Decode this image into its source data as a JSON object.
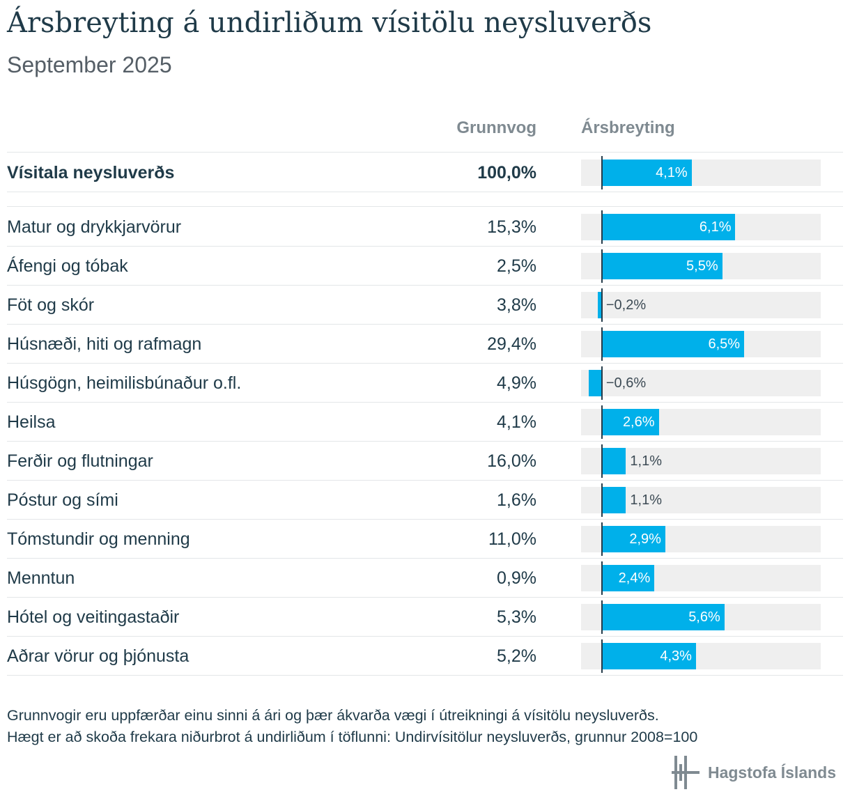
{
  "title": "Ársbreyting á undirliðum vísitölu neysluverðs",
  "subtitle": "September 2025",
  "columns": {
    "weight": "Grunnvog",
    "change": "Ársbreyting"
  },
  "total_row": {
    "label": "Vísitala neysluverðs",
    "weight": "100,0%",
    "change_label": "4,1%",
    "change": 4.1
  },
  "chart_data": {
    "type": "bar",
    "orientation": "horizontal",
    "xlim": [
      -0.95,
      10.0
    ],
    "categories": [
      "Matur og drykkjarvörur",
      "Áfengi og tóbak",
      "Föt og skór",
      "Húsnæði, hiti og rafmagn",
      "Húsgögn, heimilisbúnaður o.fl.",
      "Heilsa",
      "Ferðir og flutningar",
      "Póstur og sími",
      "Tómstundir og menning",
      "Menntun",
      "Hótel og veitingastaðir",
      "Aðrar vörur og þjónusta"
    ],
    "weights": [
      "15,3%",
      "2,5%",
      "3,8%",
      "29,4%",
      "4,9%",
      "4,1%",
      "16,0%",
      "1,6%",
      "11,0%",
      "0,9%",
      "5,3%",
      "5,2%"
    ],
    "values": [
      6.1,
      5.5,
      -0.2,
      6.5,
      -0.6,
      2.6,
      1.1,
      1.1,
      2.9,
      2.4,
      5.6,
      4.3
    ],
    "value_labels": [
      "6,1%",
      "5,5%",
      "−0,2%",
      "6,5%",
      "−0,6%",
      "2,6%",
      "1,1%",
      "1,1%",
      "2,9%",
      "2,4%",
      "5,6%",
      "4,3%"
    ]
  },
  "colors": {
    "bar": "#00b0ea",
    "track": "#efefef",
    "title": "#1f3a48",
    "header": "#7f8a91"
  },
  "footnote": {
    "line1": "Grunnvogir eru uppfærðar einu sinni á ári og þær ákvarða vægi í útreikningi á vísitölu neysluverðs.",
    "line2": "Hægt er að skoða frekara niðurbrot á undirliðum í töflunni: Undirvísitölur neysluverðs, grunnur 2008=100"
  },
  "logo": {
    "text": "Hagstofa Íslands",
    "icon": "hagstofa-logo-icon"
  }
}
